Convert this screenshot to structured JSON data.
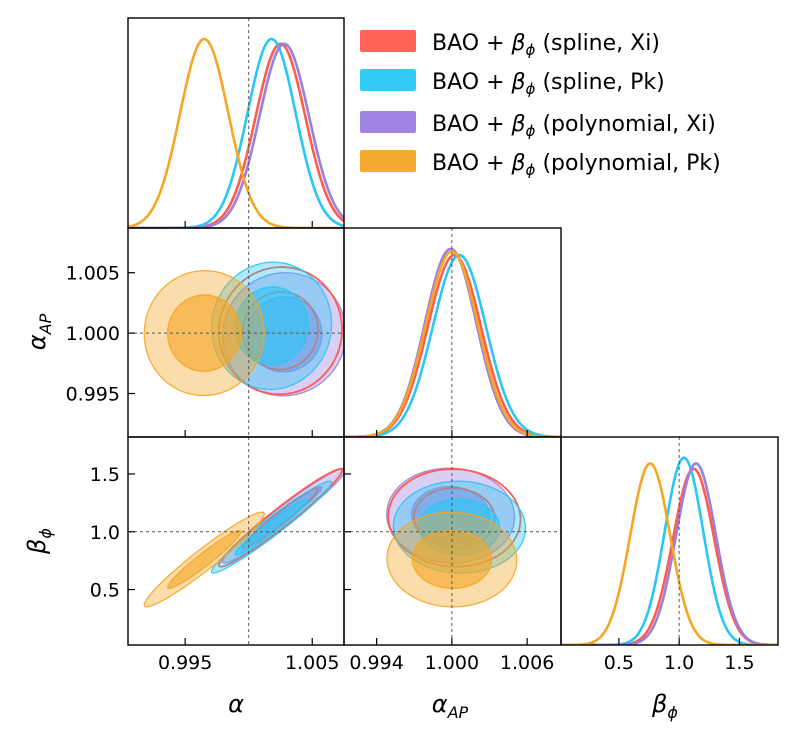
{
  "colors": {
    "spline_xi": "#ff5c4d",
    "spline_pk": "#29c7f5",
    "poly_xi": "#9b7fe0",
    "poly_pk": "#f5a623",
    "frame": "#000000",
    "guide": "#555555"
  },
  "legend": {
    "prefix": "BAO + ",
    "beta": "β",
    "phi": "ϕ",
    "entries": [
      {
        "key": "spline_xi",
        "suffix": " (spline, Xi)"
      },
      {
        "key": "spline_pk",
        "suffix": " (spline, Pk)"
      },
      {
        "key": "poly_xi",
        "suffix": " (polynomial, Xi)"
      },
      {
        "key": "poly_pk",
        "suffix": " (polynomial, Pk)"
      }
    ]
  },
  "labels": {
    "alpha": "α",
    "alpha_ap_main": "α",
    "alpha_ap_sub": "AP",
    "beta_main": "β",
    "beta_sub": "ϕ"
  },
  "chart_data": {
    "type": "corner",
    "parameters": [
      "alpha",
      "alpha_AP",
      "beta_phi"
    ],
    "fiducial": {
      "alpha": 1.0,
      "alpha_AP": 1.0,
      "beta_phi": 1.0
    },
    "ranges": {
      "alpha": [
        0.9905,
        1.0075
      ],
      "alpha_AP": [
        0.9914,
        1.0087
      ],
      "beta_phi": [
        0.02,
        1.82
      ]
    },
    "ticks": {
      "alpha": {
        "values": [
          0.995,
          1.005
        ],
        "labels": [
          "0.995",
          "1.005"
        ]
      },
      "alpha_AP": {
        "values": [
          0.994,
          1.0,
          1.006
        ],
        "labels": [
          "0.994",
          "1.000",
          "1.006"
        ]
      },
      "alpha_AP_y": {
        "values": [
          0.995,
          1.0,
          1.005
        ],
        "labels": [
          "0.995",
          "1.000",
          "1.005"
        ]
      },
      "beta_phi": {
        "values": [
          0.5,
          1.0,
          1.5
        ],
        "labels": [
          "0.5",
          "1.0",
          "1.5"
        ]
      }
    },
    "series": [
      {
        "name": "BAO + β_ϕ (spline, Xi)",
        "key": "spline_xi",
        "mean": {
          "alpha": 1.0025,
          "alpha_AP": 1.0002,
          "beta_phi": 1.12
        },
        "sigma": {
          "alpha": 0.00195,
          "alpha_AP": 0.00212,
          "beta_phi": 0.17
        },
        "rho": {
          "alpha_alphaAP": 0.02,
          "alpha_beta": 0.97,
          "alphaAP_beta": -0.03
        }
      },
      {
        "name": "BAO + β_ϕ (spline, Pk)",
        "key": "spline_pk",
        "mean": {
          "alpha": 1.0018,
          "alpha_AP": 1.0006,
          "beta_phi": 1.04
        },
        "sigma": {
          "alpha": 0.0019,
          "alpha_AP": 0.00212,
          "beta_phi": 0.16
        },
        "rho": {
          "alpha_alphaAP": 0.03,
          "alpha_beta": 0.97,
          "alphaAP_beta": -0.02
        }
      },
      {
        "name": "BAO + β_ϕ (polynomial, Xi)",
        "key": "poly_xi",
        "mean": {
          "alpha": 1.0028,
          "alpha_AP": 0.9999,
          "beta_phi": 1.14
        },
        "sigma": {
          "alpha": 0.00195,
          "alpha_AP": 0.00205,
          "beta_phi": 0.165
        },
        "rho": {
          "alpha_alphaAP": 0.02,
          "alpha_beta": 0.97,
          "alphaAP_beta": -0.03
        }
      },
      {
        "name": "BAO + β_ϕ (polynomial, Pk)",
        "key": "poly_pk",
        "mean": {
          "alpha": 0.9965,
          "alpha_AP": 1.0,
          "beta_phi": 0.76
        },
        "sigma": {
          "alpha": 0.0019,
          "alpha_AP": 0.00208,
          "beta_phi": 0.165
        },
        "rho": {
          "alpha_alphaAP": 0.01,
          "alpha_beta": 0.96,
          "alphaAP_beta": -0.02
        }
      }
    ]
  }
}
